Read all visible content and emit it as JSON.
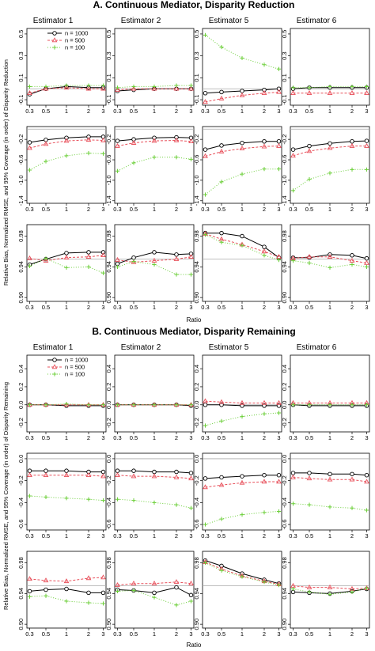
{
  "sections": [
    {
      "title": "A. Continuous Mediator, Disparity Reduction",
      "ylabel": "Relative Bias, Normalized RMSE, and 95% Coverage (in order) of Disparity Reduction",
      "xlabel": "Ratio"
    },
    {
      "title": "B. Continuous Mediator, Disparity Remaining",
      "ylabel": "Relative Bias, Normalized RMSE, and 95% Coverage (in order) of Disparity Remaining",
      "xlabel": "Ratio"
    }
  ],
  "columns": [
    "Estimator 1",
    "Estimator 2",
    "Estimator 5",
    "Estimator 6"
  ],
  "legend": [
    "n = 1000",
    "n = 500",
    "n = 100"
  ],
  "colors": {
    "n1000": "#000000",
    "n500": "#e8505b",
    "n100": "#6ccf3a",
    "refline": "#aaaaaa"
  },
  "x_tick_labels": [
    "0.3",
    "0.5",
    "1",
    "2",
    "3"
  ],
  "rows": [
    {
      "ylim": [
        -0.15,
        0.55
      ],
      "ticks": [
        -0.1,
        0.1,
        0.3,
        0.5
      ],
      "tick_labels": [
        "-0.1",
        "0.1",
        "0.3",
        "0.5"
      ]
    },
    {
      "ylim": [
        -1.45,
        0.05
      ],
      "ticks": [
        -1.4,
        -1.0,
        -0.6,
        -0.2
      ],
      "tick_labels": [
        "-1.4",
        "-1.0",
        "-0.6",
        "-0.2"
      ]
    },
    {
      "ylim": [
        0.895,
        0.995
      ],
      "ticks": [
        0.9,
        0.94,
        0.98
      ],
      "tick_labels": [
        "0.90",
        "0.94",
        "0.98"
      ]
    },
    {
      "ylim": [
        -0.3,
        0.55
      ],
      "ticks": [
        -0.2,
        0.0,
        0.2,
        0.4
      ],
      "tick_labels": [
        "-0.2",
        "0.0",
        "0.2",
        "0.4"
      ]
    },
    {
      "ylim": [
        -0.65,
        0.05
      ],
      "ticks": [
        -0.6,
        -0.4,
        -0.2,
        0.0
      ],
      "tick_labels": [
        "-0.6",
        "-0.4",
        "-0.2",
        "0.0"
      ]
    },
    {
      "ylim": [
        0.895,
        0.995
      ],
      "ticks": [
        0.9,
        0.94,
        0.98
      ],
      "tick_labels": [
        "0.90",
        "0.94",
        "0.98"
      ]
    }
  ],
  "chart_data": {
    "type": "line",
    "x": [
      0.3,
      0.5,
      1,
      2,
      3
    ],
    "series_names": [
      "n = 1000",
      "n = 500",
      "n = 100"
    ],
    "panels": [
      [
        {
          "ref": 0,
          "s1000": [
            -0.05,
            0.0,
            0.02,
            0.01,
            0.01
          ],
          "s500": [
            -0.04,
            0.0,
            0.01,
            0.0,
            0.0
          ],
          "s100": [
            0.02,
            0.02,
            0.03,
            0.03,
            0.03
          ]
        },
        {
          "ref": 0,
          "s1000": [
            -0.02,
            -0.01,
            0.0,
            0.0,
            0.0
          ],
          "s500": [
            -0.01,
            0.0,
            0.0,
            0.0,
            0.0
          ],
          "s100": [
            0.01,
            0.02,
            0.02,
            0.03,
            0.03
          ]
        },
        {
          "ref": 0,
          "s1000": [
            -0.04,
            -0.03,
            -0.02,
            -0.01,
            0.0
          ],
          "s500": [
            -0.12,
            -0.09,
            -0.06,
            -0.04,
            -0.03
          ],
          "s100": [
            0.49,
            0.38,
            0.28,
            0.22,
            0.18
          ]
        },
        {
          "ref": 0,
          "s1000": [
            0.0,
            0.01,
            0.01,
            0.01,
            0.01
          ],
          "s500": [
            -0.04,
            -0.04,
            -0.04,
            -0.04,
            -0.04
          ],
          "s100": [
            0.01,
            0.01,
            0.02,
            0.02,
            0.02
          ]
        }
      ],
      [
        {
          "ref": 0,
          "s1000": [
            -0.26,
            -0.21,
            -0.17,
            -0.15,
            -0.15
          ],
          "s500": [
            -0.37,
            -0.29,
            -0.23,
            -0.21,
            -0.22
          ],
          "s100": [
            -0.8,
            -0.63,
            -0.52,
            -0.47,
            -0.48
          ]
        },
        {
          "ref": 0,
          "s1000": [
            -0.23,
            -0.2,
            -0.17,
            -0.16,
            -0.17
          ],
          "s500": [
            -0.33,
            -0.27,
            -0.23,
            -0.22,
            -0.24
          ],
          "s100": [
            -0.82,
            -0.66,
            -0.55,
            -0.55,
            -0.59
          ]
        },
        {
          "ref": 0,
          "s1000": [
            -0.4,
            -0.32,
            -0.27,
            -0.24,
            -0.24
          ],
          "s500": [
            -0.53,
            -0.44,
            -0.38,
            -0.34,
            -0.33
          ],
          "s100": [
            -1.28,
            -1.03,
            -0.88,
            -0.78,
            -0.78
          ]
        },
        {
          "ref": 0,
          "s1000": [
            -0.4,
            -0.33,
            -0.28,
            -0.24,
            -0.23
          ],
          "s500": [
            -0.52,
            -0.43,
            -0.37,
            -0.33,
            -0.33
          ],
          "s100": [
            -1.2,
            -0.98,
            -0.86,
            -0.79,
            -0.79
          ]
        }
      ],
      [
        {
          "ref": 0.95,
          "s1000": [
            0.943,
            0.95,
            0.958,
            0.959,
            0.959
          ],
          "s500": [
            0.951,
            0.948,
            0.952,
            0.953,
            0.955
          ],
          "s100": [
            0.941,
            0.951,
            0.939,
            0.94,
            0.932
          ]
        },
        {
          "ref": 0.95,
          "s1000": [
            0.944,
            0.952,
            0.959,
            0.956,
            0.957
          ],
          "s500": [
            0.949,
            0.946,
            0.948,
            0.95,
            0.953
          ],
          "s100": [
            0.94,
            0.947,
            0.943,
            0.93,
            0.93
          ]
        },
        {
          "ref": 0.95,
          "s1000": [
            0.984,
            0.984,
            0.98,
            0.966,
            0.952
          ],
          "s500": [
            0.983,
            0.976,
            0.969,
            0.96,
            0.953
          ],
          "s100": [
            0.982,
            0.972,
            0.968,
            0.955,
            0.949
          ]
        },
        {
          "ref": 0.95,
          "s1000": [
            0.952,
            0.952,
            0.956,
            0.955,
            0.951
          ],
          "s500": [
            0.951,
            0.953,
            0.953,
            0.948,
            0.945
          ],
          "s100": [
            0.948,
            0.945,
            0.939,
            0.943,
            0.94
          ]
        }
      ],
      [
        {
          "ref": 0,
          "s1000": [
            0.0,
            0.0,
            -0.01,
            -0.01,
            -0.01
          ],
          "s500": [
            0.0,
            0.0,
            0.0,
            0.0,
            0.0
          ],
          "s100": [
            0.0,
            0.0,
            0.01,
            0.0,
            0.0
          ]
        },
        {
          "ref": 0,
          "s1000": [
            0.0,
            0.0,
            0.0,
            0.0,
            -0.01
          ],
          "s500": [
            0.0,
            0.0,
            0.0,
            0.0,
            0.0
          ],
          "s100": [
            0.0,
            0.0,
            0.0,
            0.0,
            0.0
          ]
        },
        {
          "ref": 0,
          "s1000": [
            0.0,
            0.0,
            -0.01,
            -0.01,
            -0.01
          ],
          "s500": [
            0.04,
            0.03,
            0.02,
            0.02,
            0.02
          ],
          "s100": [
            -0.23,
            -0.18,
            -0.13,
            -0.1,
            -0.09
          ]
        },
        {
          "ref": 0,
          "s1000": [
            0.0,
            -0.01,
            -0.01,
            -0.01,
            -0.01
          ],
          "s500": [
            0.02,
            0.02,
            0.02,
            0.02,
            0.02
          ],
          "s100": [
            0.0,
            0.0,
            0.0,
            0.0,
            0.0
          ]
        }
      ],
      [
        {
          "ref": 0,
          "s1000": [
            -0.11,
            -0.11,
            -0.11,
            -0.12,
            -0.12
          ],
          "s500": [
            -0.15,
            -0.15,
            -0.15,
            -0.15,
            -0.16
          ],
          "s100": [
            -0.34,
            -0.35,
            -0.36,
            -0.37,
            -0.38
          ]
        },
        {
          "ref": 0,
          "s1000": [
            -0.11,
            -0.11,
            -0.12,
            -0.12,
            -0.13
          ],
          "s500": [
            -0.15,
            -0.16,
            -0.16,
            -0.17,
            -0.18
          ],
          "s100": [
            -0.37,
            -0.38,
            -0.4,
            -0.42,
            -0.45
          ]
        },
        {
          "ref": 0,
          "s1000": [
            -0.18,
            -0.17,
            -0.16,
            -0.15,
            -0.15
          ],
          "s500": [
            -0.26,
            -0.24,
            -0.22,
            -0.21,
            -0.21
          ],
          "s100": [
            -0.6,
            -0.55,
            -0.51,
            -0.49,
            -0.48
          ]
        },
        {
          "ref": 0,
          "s1000": [
            -0.13,
            -0.13,
            -0.14,
            -0.14,
            -0.15
          ],
          "s500": [
            -0.17,
            -0.18,
            -0.19,
            -0.19,
            -0.21
          ],
          "s100": [
            -0.41,
            -0.42,
            -0.44,
            -0.45,
            -0.47
          ]
        }
      ],
      [
        {
          "ref": 0.95,
          "s1000": [
            0.943,
            0.945,
            0.946,
            0.941,
            0.941
          ],
          "s500": [
            0.959,
            0.957,
            0.956,
            0.96,
            0.961
          ],
          "s100": [
            0.936,
            0.937,
            0.93,
            0.928,
            0.927
          ]
        },
        {
          "ref": 0.95,
          "s1000": [
            0.945,
            0.944,
            0.941,
            0.948,
            0.938
          ],
          "s500": [
            0.951,
            0.953,
            0.953,
            0.955,
            0.953
          ],
          "s100": [
            0.943,
            0.944,
            0.935,
            0.925,
            0.93
          ]
        },
        {
          "ref": 0.95,
          "s1000": [
            0.983,
            0.976,
            0.966,
            0.958,
            0.953
          ],
          "s500": [
            0.981,
            0.972,
            0.963,
            0.956,
            0.952
          ],
          "s100": [
            0.98,
            0.97,
            0.962,
            0.955,
            0.951
          ]
        },
        {
          "ref": 0.95,
          "s1000": [
            0.942,
            0.941,
            0.94,
            0.943,
            0.946
          ],
          "s500": [
            0.95,
            0.948,
            0.948,
            0.946,
            0.947
          ],
          "s100": [
            0.946,
            0.942,
            0.939,
            0.942,
            0.947
          ]
        }
      ]
    ]
  }
}
